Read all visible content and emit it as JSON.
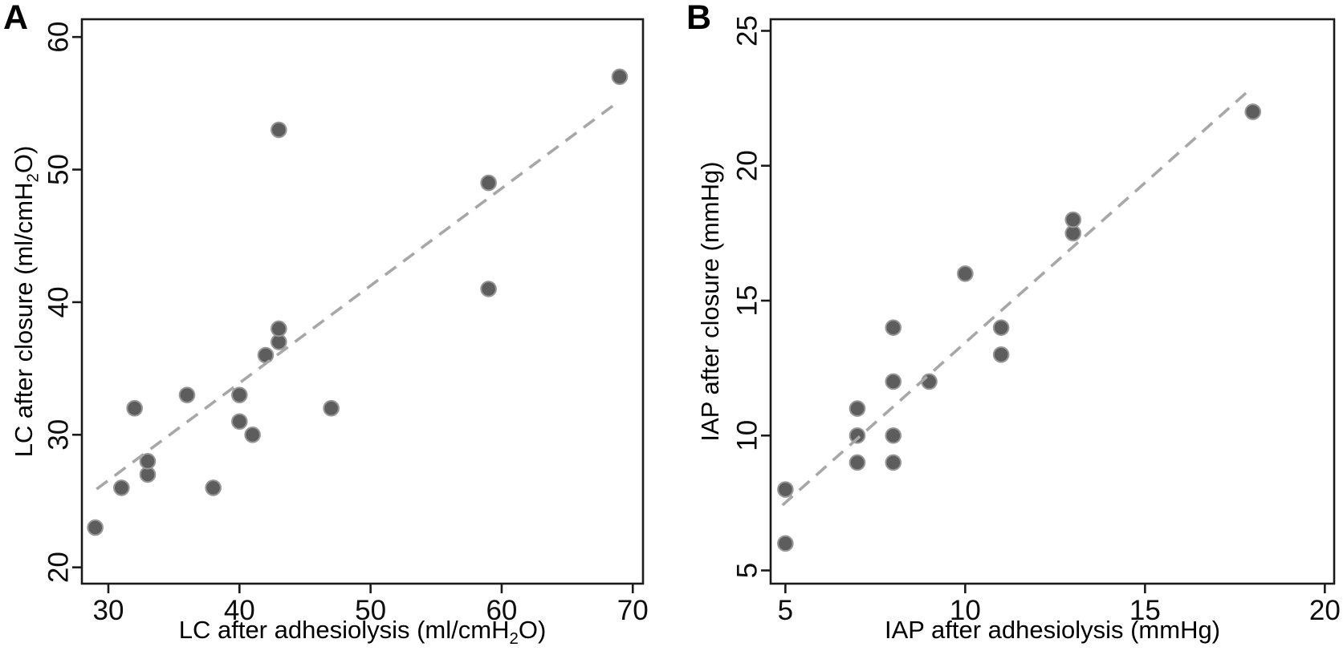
{
  "figure": {
    "background": "#ffffff",
    "styles": {
      "point_fill": "#5d5d5d",
      "point_stroke": "#979797",
      "point_radius": 9.3,
      "trend_color": "#a7a7a7",
      "trend_width": 3.6,
      "trend_dash": "17 11",
      "axis_color": "#1a1a1a",
      "axis_width": 2.6,
      "tick_length": 12,
      "tick_font_px": 35
    }
  },
  "chart_data": [
    {
      "type": "scatter",
      "panel_label": "A",
      "xlabel": {
        "pre": "LC after adhesiolysis (ml/cmH",
        "sub": "2",
        "post": "O)"
      },
      "ylabel": {
        "pre": "LC after closure (ml/cmH",
        "sub": "2",
        "post": "O)"
      },
      "xlim": [
        27.98,
        70.78
      ],
      "ylim": [
        18.77,
        61.34
      ],
      "xticks": [
        30,
        40,
        50,
        60,
        70
      ],
      "yticks": [
        20,
        30,
        40,
        50,
        60
      ],
      "grid": false,
      "legend": null,
      "points": [
        [
          29,
          23
        ],
        [
          31,
          26
        ],
        [
          32,
          32
        ],
        [
          33,
          27
        ],
        [
          33,
          28
        ],
        [
          36,
          33
        ],
        [
          38,
          26
        ],
        [
          40,
          31
        ],
        [
          40,
          33
        ],
        [
          41,
          30
        ],
        [
          42,
          36
        ],
        [
          43,
          37
        ],
        [
          43,
          38
        ],
        [
          43,
          53
        ],
        [
          47,
          32
        ],
        [
          59,
          41
        ],
        [
          59,
          49
        ],
        [
          69,
          57
        ]
      ],
      "trendline": {
        "style": "dashed",
        "x1": 29.1,
        "y1": 25.9,
        "x2": 68.6,
        "y2": 54.9
      }
    },
    {
      "type": "scatter",
      "panel_label": "B",
      "xlabel": {
        "pre": "IAP after adhesiolysis (mmHg)",
        "sub": "",
        "post": ""
      },
      "ylabel": {
        "pre": "IAP after closure (mmHg)",
        "sub": "",
        "post": ""
      },
      "xlim": [
        4.59,
        20.26
      ],
      "ylim": [
        4.51,
        25.43
      ],
      "xticks": [
        5,
        10,
        15,
        20
      ],
      "yticks": [
        5,
        10,
        15,
        20,
        25
      ],
      "grid": false,
      "legend": null,
      "points": [
        [
          5,
          6
        ],
        [
          5,
          8
        ],
        [
          7,
          9
        ],
        [
          7,
          10
        ],
        [
          7,
          11
        ],
        [
          8,
          9
        ],
        [
          8,
          10
        ],
        [
          8,
          12
        ],
        [
          8,
          14
        ],
        [
          9,
          12
        ],
        [
          10,
          16
        ],
        [
          11,
          13
        ],
        [
          11,
          14
        ],
        [
          13,
          17.5
        ],
        [
          13,
          18
        ],
        [
          18,
          22
        ]
      ],
      "trendline": {
        "style": "dashed",
        "x1": 4.92,
        "y1": 7.42,
        "x2": 17.98,
        "y2": 22.9
      }
    }
  ]
}
